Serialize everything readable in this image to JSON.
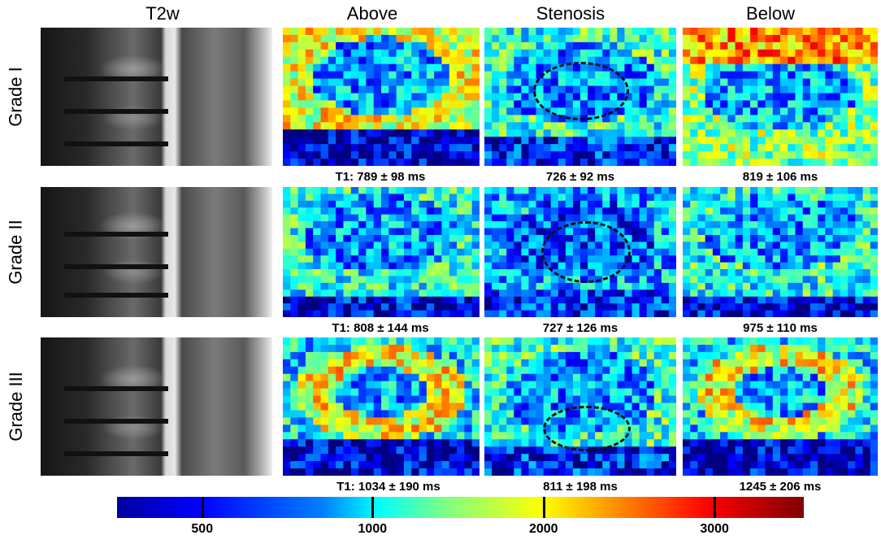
{
  "columns": [
    "T2w",
    "Above",
    "Stenosis",
    "Below"
  ],
  "rows": [
    {
      "label": "Grade I",
      "t1": [
        "T1: 789 ± 98 ms",
        "726 ± 92 ms",
        "819 ± 106 ms"
      ]
    },
    {
      "label": "Grade II",
      "t1": [
        "T1: 808 ± 144 ms",
        "727 ± 126 ms",
        "975 ± 110 ms"
      ]
    },
    {
      "label": "Grade III",
      "t1": [
        "T1: 1034 ± 190 ms",
        "811 ± 198 ms",
        "1245 ± 206 ms"
      ]
    }
  ],
  "colorbar": {
    "ticks": [
      "500",
      "1000",
      "2000",
      "3000"
    ],
    "tick_fractions": [
      0.124,
      0.372,
      0.621,
      0.87
    ],
    "colors": [
      "#0000a0",
      "#0000ff",
      "#00ffff",
      "#ffff00",
      "#ff0000",
      "#800000"
    ]
  }
}
